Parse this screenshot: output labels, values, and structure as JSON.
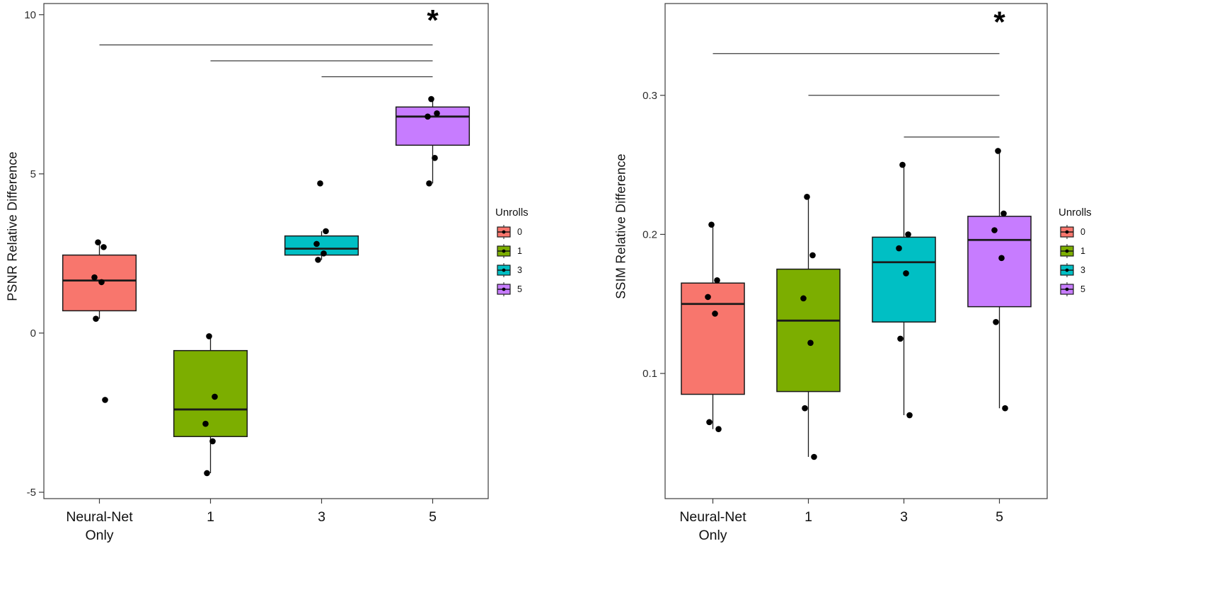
{
  "figure": {
    "background": "#ffffff",
    "description_colors": {
      "unroll_0": "#F8766D",
      "unroll_1": "#7CAE00",
      "unroll_3": "#00BFC4",
      "unroll_5": "#C77CFF"
    }
  },
  "chart_data": [
    {
      "type": "boxplot",
      "title": "",
      "xlabel": "",
      "ylabel": "PSNR Relative Difference",
      "categories": [
        "Neural-Net\nOnly",
        "1",
        "3",
        "5"
      ],
      "ylim": [
        -5.2,
        10.35
      ],
      "yticks": [
        -5,
        0,
        5,
        10
      ],
      "grid": false,
      "legend": {
        "title": "Unrolls",
        "position": "right",
        "entries": [
          "0",
          "1",
          "3",
          "5"
        ],
        "colors": [
          "#F8766D",
          "#7CAE00",
          "#00BFC4",
          "#C77CFF"
        ]
      },
      "series": [
        {
          "category": "Neural-Net Only",
          "color": "#F8766D",
          "whisker_low": 0.45,
          "q1": 0.7,
          "median": 1.65,
          "q3": 2.45,
          "whisker_high": 2.8,
          "points": [
            2.85,
            2.7,
            1.75,
            1.6,
            0.45,
            -2.1
          ]
        },
        {
          "category": "1",
          "color": "#7CAE00",
          "whisker_low": -4.4,
          "q1": -3.25,
          "median": -2.4,
          "q3": -0.55,
          "whisker_high": -0.1,
          "points": [
            -0.1,
            -2.0,
            -2.85,
            -3.4,
            -4.4
          ]
        },
        {
          "category": "3",
          "color": "#00BFC4",
          "whisker_low": 2.3,
          "q1": 2.45,
          "median": 2.65,
          "q3": 3.05,
          "whisker_high": 3.2,
          "points": [
            4.7,
            3.2,
            2.8,
            2.5,
            2.3
          ]
        },
        {
          "category": "5",
          "color": "#C77CFF",
          "whisker_low": 4.7,
          "q1": 5.9,
          "median": 6.8,
          "q3": 7.1,
          "whisker_high": 7.4,
          "points": [
            7.35,
            6.9,
            6.8,
            5.5,
            4.7
          ]
        }
      ],
      "significance": {
        "symbol": "*",
        "symbol_y": 9.8,
        "bars": [
          {
            "from": 0,
            "to": 3,
            "y": 9.05
          },
          {
            "from": 1,
            "to": 3,
            "y": 8.55
          },
          {
            "from": 2,
            "to": 3,
            "y": 8.05
          }
        ]
      }
    },
    {
      "type": "boxplot",
      "title": "",
      "xlabel": "",
      "ylabel": "SSIM Relative Difference",
      "categories": [
        "Neural-Net\nOnly",
        "1",
        "3",
        "5"
      ],
      "ylim": [
        0.01,
        0.366
      ],
      "yticks": [
        0.1,
        0.2,
        0.3
      ],
      "grid": false,
      "legend": {
        "title": "Unrolls",
        "position": "right",
        "entries": [
          "0",
          "1",
          "3",
          "5"
        ],
        "colors": [
          "#F8766D",
          "#7CAE00",
          "#00BFC4",
          "#C77CFF"
        ]
      },
      "series": [
        {
          "category": "Neural-Net Only",
          "color": "#F8766D",
          "whisker_low": 0.06,
          "q1": 0.085,
          "median": 0.15,
          "q3": 0.165,
          "whisker_high": 0.207,
          "points": [
            0.207,
            0.167,
            0.155,
            0.143,
            0.065,
            0.06
          ]
        },
        {
          "category": "1",
          "color": "#7CAE00",
          "whisker_low": 0.04,
          "q1": 0.087,
          "median": 0.138,
          "q3": 0.175,
          "whisker_high": 0.227,
          "points": [
            0.227,
            0.185,
            0.154,
            0.122,
            0.075,
            0.04
          ]
        },
        {
          "category": "3",
          "color": "#00BFC4",
          "whisker_low": 0.07,
          "q1": 0.137,
          "median": 0.18,
          "q3": 0.198,
          "whisker_high": 0.25,
          "points": [
            0.25,
            0.2,
            0.19,
            0.172,
            0.125,
            0.07
          ]
        },
        {
          "category": "5",
          "color": "#C77CFF",
          "whisker_low": 0.075,
          "q1": 0.148,
          "median": 0.196,
          "q3": 0.213,
          "whisker_high": 0.26,
          "points": [
            0.26,
            0.215,
            0.203,
            0.183,
            0.137,
            0.075
          ]
        }
      ],
      "significance": {
        "symbol": "*",
        "symbol_y": 0.352,
        "bars": [
          {
            "from": 0,
            "to": 3,
            "y": 0.33
          },
          {
            "from": 1,
            "to": 3,
            "y": 0.3
          },
          {
            "from": 2,
            "to": 3,
            "y": 0.27
          }
        ]
      }
    }
  ]
}
